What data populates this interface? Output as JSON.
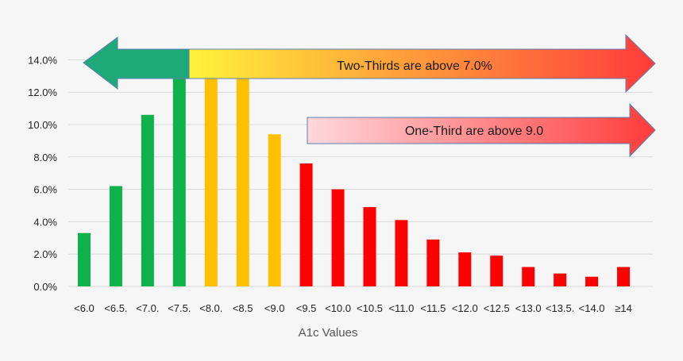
{
  "chart_data": {
    "type": "bar",
    "xlabel": "A1c Values",
    "ylabel": "",
    "ylim": [
      0,
      0.15
    ],
    "yticks": [
      0,
      0.02,
      0.04,
      0.06,
      0.08,
      0.1,
      0.12,
      0.14
    ],
    "ytick_labels": [
      "0.0%",
      "2.0%",
      "4.0%",
      "6.0%",
      "8.0%",
      "10.0%",
      "12.0%",
      "14.0%"
    ],
    "grid": true,
    "categories": [
      "<6.0",
      "<6.5.",
      "<7.0.",
      "<7.5.",
      "<8.0.",
      "<8.5",
      "<9.0",
      "<9.5",
      "<10.0",
      "<10.5",
      "<11.0",
      "<11.5",
      "<12.0",
      "<12.5",
      "<13.0",
      "<13.5.",
      "<14.0",
      "≥14"
    ],
    "values": [
      0.033,
      0.062,
      0.106,
      0.131,
      0.131,
      0.13,
      0.094,
      0.076,
      0.06,
      0.049,
      0.041,
      0.029,
      0.021,
      0.019,
      0.012,
      0.008,
      0.006,
      0.012
    ],
    "bar_colors": [
      "#0fb24a",
      "#0fb24a",
      "#0fb24a",
      "#0fb24a",
      "#ffc000",
      "#ffc000",
      "#ffc000",
      "#ff0000",
      "#ff0000",
      "#ff0000",
      "#ff0000",
      "#ff0000",
      "#ff0000",
      "#ff0000",
      "#ff0000",
      "#ff0000",
      "#ff0000",
      "#ff0000"
    ],
    "annotations": [
      {
        "text": "Two-Thirds are above 7.0%"
      },
      {
        "text": "One-Third are above 9.0"
      }
    ]
  },
  "colors": {
    "green": "#1fa978",
    "yellow": "#fff23a",
    "red": "#ff3b3b",
    "pink": "#ffd8dc",
    "outline": "#5b7fb6",
    "grid": "#d9d9d9"
  }
}
